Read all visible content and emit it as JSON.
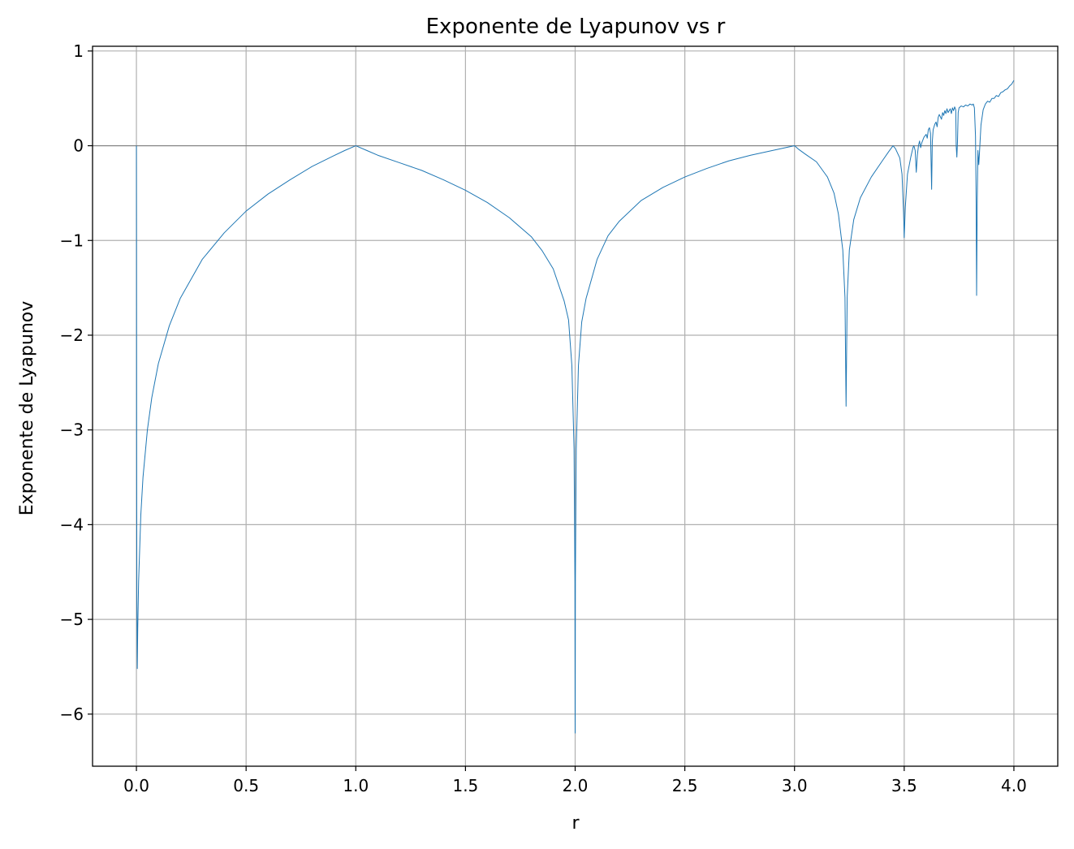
{
  "chart_data": {
    "type": "line",
    "title": "Exponente de Lyapunov vs r",
    "xlabel": "r",
    "ylabel": "Exponente de Lyapunov",
    "xlim": [
      -0.2,
      4.2
    ],
    "ylim": [
      -6.55,
      1.05
    ],
    "x_ticks": [
      0.0,
      0.5,
      1.0,
      1.5,
      2.0,
      2.5,
      3.0,
      3.5,
      4.0
    ],
    "x_tick_labels": [
      "0.0",
      "0.5",
      "1.0",
      "1.5",
      "2.0",
      "2.5",
      "3.0",
      "3.5",
      "4.0"
    ],
    "y_ticks": [
      1,
      0,
      -1,
      -2,
      -3,
      -4,
      -5,
      -6
    ],
    "y_tick_labels": [
      "1",
      "0",
      "−1",
      "−2",
      "−3",
      "−4",
      "−5",
      "−6"
    ],
    "grid": true,
    "reference_line_y": 0,
    "colors": {
      "series": "#1f77b4",
      "grid": "#b0b0b0",
      "zero_line": "#808080",
      "axes": "#000000"
    },
    "series": [
      {
        "points": [
          [
            0.0,
            0.0
          ],
          [
            0.0005,
            -1.0
          ],
          [
            0.001,
            -3.0
          ],
          [
            0.002,
            -4.8
          ],
          [
            0.004,
            -5.52
          ],
          [
            0.006,
            -5.1
          ],
          [
            0.01,
            -4.6
          ],
          [
            0.02,
            -3.9
          ],
          [
            0.03,
            -3.5
          ],
          [
            0.05,
            -3.0
          ],
          [
            0.07,
            -2.66
          ],
          [
            0.1,
            -2.3
          ],
          [
            0.15,
            -1.9
          ],
          [
            0.2,
            -1.61
          ],
          [
            0.3,
            -1.2
          ],
          [
            0.4,
            -0.92
          ],
          [
            0.5,
            -0.69
          ],
          [
            0.6,
            -0.51
          ],
          [
            0.7,
            -0.36
          ],
          [
            0.8,
            -0.22
          ],
          [
            0.9,
            -0.105
          ],
          [
            0.95,
            -0.05
          ],
          [
            1.0,
            0.0
          ],
          [
            1.05,
            -0.05
          ],
          [
            1.1,
            -0.1
          ],
          [
            1.2,
            -0.18
          ],
          [
            1.3,
            -0.26
          ],
          [
            1.4,
            -0.36
          ],
          [
            1.5,
            -0.47
          ],
          [
            1.6,
            -0.6
          ],
          [
            1.7,
            -0.76
          ],
          [
            1.8,
            -0.96
          ],
          [
            1.85,
            -1.11
          ],
          [
            1.9,
            -1.3
          ],
          [
            1.95,
            -1.64
          ],
          [
            1.97,
            -1.84
          ],
          [
            1.985,
            -2.32
          ],
          [
            1.995,
            -3.2
          ],
          [
            1.999,
            -4.6
          ],
          [
            2.0,
            -6.2
          ],
          [
            2.001,
            -4.6
          ],
          [
            2.005,
            -3.2
          ],
          [
            2.015,
            -2.32
          ],
          [
            2.03,
            -1.86
          ],
          [
            2.05,
            -1.61
          ],
          [
            2.1,
            -1.2
          ],
          [
            2.15,
            -0.95
          ],
          [
            2.2,
            -0.8
          ],
          [
            2.3,
            -0.58
          ],
          [
            2.4,
            -0.44
          ],
          [
            2.5,
            -0.33
          ],
          [
            2.6,
            -0.24
          ],
          [
            2.7,
            -0.16
          ],
          [
            2.8,
            -0.1
          ],
          [
            2.9,
            -0.05
          ],
          [
            3.0,
            0.0
          ],
          [
            3.02,
            -0.04
          ],
          [
            3.05,
            -0.09
          ],
          [
            3.1,
            -0.17
          ],
          [
            3.15,
            -0.33
          ],
          [
            3.18,
            -0.5
          ],
          [
            3.2,
            -0.72
          ],
          [
            3.22,
            -1.1
          ],
          [
            3.23,
            -1.6
          ],
          [
            3.235,
            -2.75
          ],
          [
            3.24,
            -1.6
          ],
          [
            3.25,
            -1.1
          ],
          [
            3.27,
            -0.78
          ],
          [
            3.3,
            -0.55
          ],
          [
            3.35,
            -0.33
          ],
          [
            3.4,
            -0.16
          ],
          [
            3.43,
            -0.06
          ],
          [
            3.449,
            0.0
          ],
          [
            3.46,
            -0.03
          ],
          [
            3.48,
            -0.13
          ],
          [
            3.49,
            -0.3
          ],
          [
            3.497,
            -0.7
          ],
          [
            3.5,
            -0.97
          ],
          [
            3.505,
            -0.65
          ],
          [
            3.515,
            -0.3
          ],
          [
            3.53,
            -0.12
          ],
          [
            3.54,
            -0.02
          ],
          [
            3.544,
            0.0
          ],
          [
            3.55,
            -0.05
          ],
          [
            3.555,
            -0.28
          ],
          [
            3.56,
            -0.1
          ],
          [
            3.565,
            0.0
          ],
          [
            3.57,
            0.05
          ],
          [
            3.575,
            -0.02
          ],
          [
            3.58,
            0.03
          ],
          [
            3.59,
            0.09
          ],
          [
            3.6,
            0.12
          ],
          [
            3.605,
            0.08
          ],
          [
            3.61,
            0.17
          ],
          [
            3.615,
            0.19
          ],
          [
            3.62,
            0.13
          ],
          [
            3.625,
            -0.46
          ],
          [
            3.628,
            0.04
          ],
          [
            3.632,
            0.17
          ],
          [
            3.64,
            0.23
          ],
          [
            3.645,
            0.25
          ],
          [
            3.65,
            0.2
          ],
          [
            3.655,
            0.3
          ],
          [
            3.66,
            0.33
          ],
          [
            3.67,
            0.28
          ],
          [
            3.675,
            0.35
          ],
          [
            3.68,
            0.32
          ],
          [
            3.685,
            0.37
          ],
          [
            3.69,
            0.34
          ],
          [
            3.695,
            0.39
          ],
          [
            3.7,
            0.35
          ],
          [
            3.705,
            0.37
          ],
          [
            3.71,
            0.39
          ],
          [
            3.715,
            0.34
          ],
          [
            3.72,
            0.4
          ],
          [
            3.725,
            0.37
          ],
          [
            3.73,
            0.41
          ],
          [
            3.735,
            0.38
          ],
          [
            3.737,
            0.0
          ],
          [
            3.74,
            -0.12
          ],
          [
            3.743,
            0.05
          ],
          [
            3.746,
            0.35
          ],
          [
            3.75,
            0.4
          ],
          [
            3.76,
            0.42
          ],
          [
            3.77,
            0.41
          ],
          [
            3.78,
            0.43
          ],
          [
            3.79,
            0.42
          ],
          [
            3.8,
            0.44
          ],
          [
            3.81,
            0.43
          ],
          [
            3.815,
            0.44
          ],
          [
            3.82,
            0.4
          ],
          [
            3.825,
            0.1
          ],
          [
            3.828,
            -0.6
          ],
          [
            3.83,
            -1.58
          ],
          [
            3.833,
            -0.55
          ],
          [
            3.836,
            -0.05
          ],
          [
            3.84,
            -0.2
          ],
          [
            3.843,
            -0.08
          ],
          [
            3.846,
            0.05
          ],
          [
            3.85,
            0.22
          ],
          [
            3.86,
            0.38
          ],
          [
            3.87,
            0.44
          ],
          [
            3.88,
            0.47
          ],
          [
            3.89,
            0.46
          ],
          [
            3.9,
            0.5
          ],
          [
            3.91,
            0.5
          ],
          [
            3.92,
            0.53
          ],
          [
            3.93,
            0.52
          ],
          [
            3.94,
            0.56
          ],
          [
            3.95,
            0.57
          ],
          [
            3.96,
            0.59
          ],
          [
            3.97,
            0.6
          ],
          [
            3.98,
            0.63
          ],
          [
            3.99,
            0.65
          ],
          [
            4.0,
            0.69
          ]
        ]
      }
    ]
  }
}
